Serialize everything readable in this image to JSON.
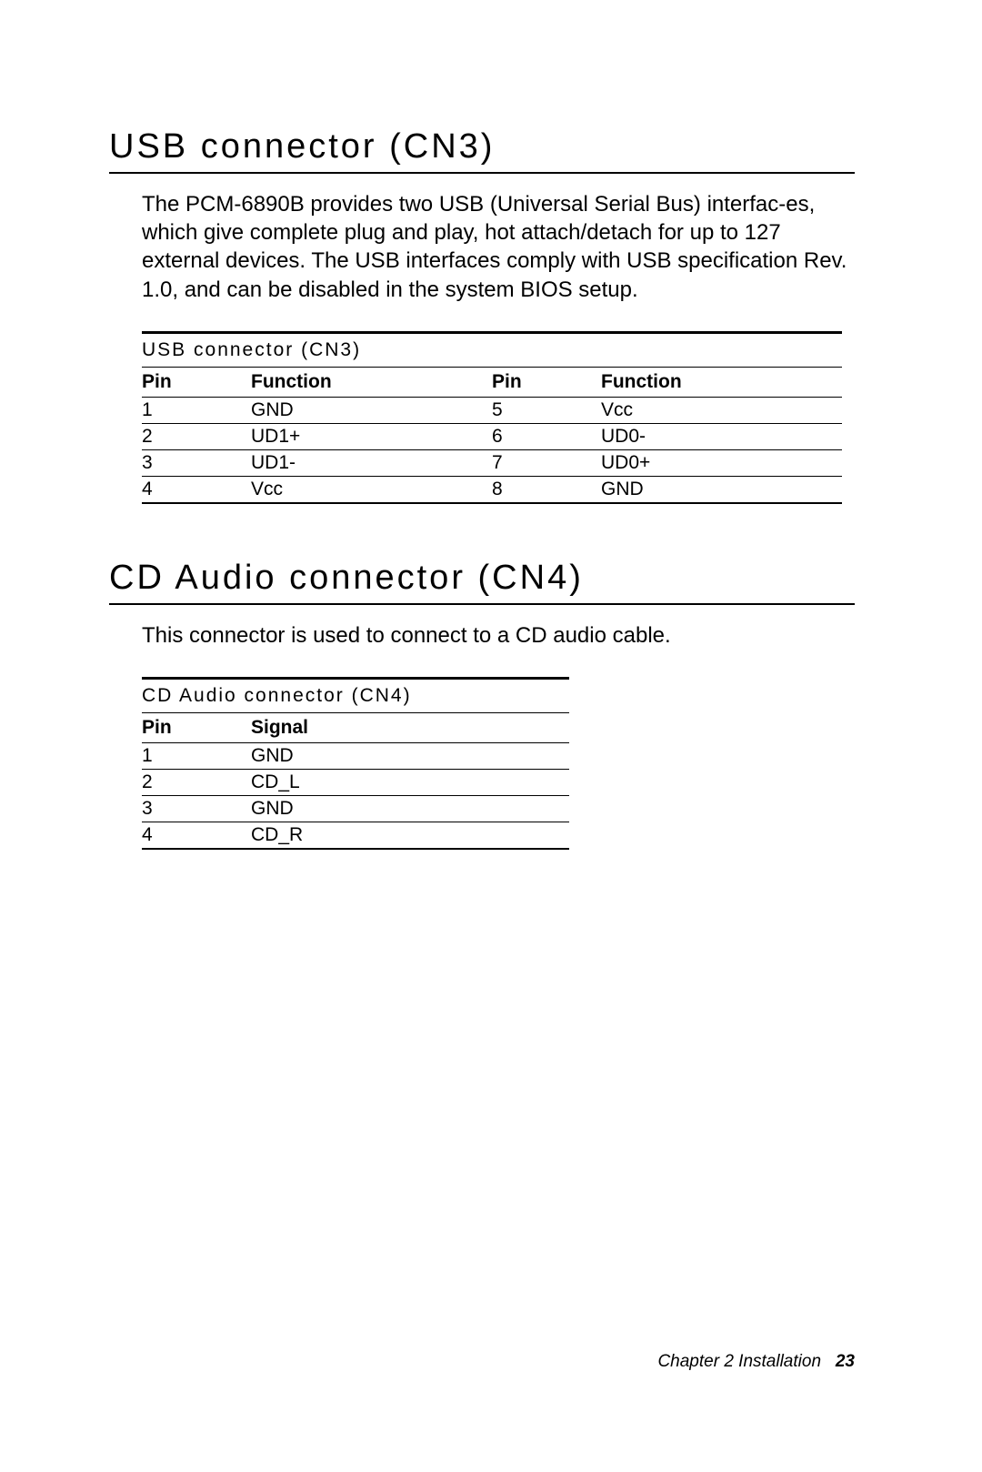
{
  "usb": {
    "heading": "USB connector (CN3)",
    "paragraph": "The PCM-6890B provides two USB (Universal Serial Bus) interfac-es, which give complete plug and play, hot attach/detach for up to 127 external devices.  The USB interfaces comply with USB specification Rev. 1.0, and can be disabled in the system BIOS setup.",
    "table_caption": "USB connector (CN3)",
    "columns": [
      "Pin",
      "Function",
      "Pin",
      "Function"
    ],
    "rows": [
      [
        "1",
        "GND",
        "5",
        "Vcc"
      ],
      [
        "2",
        "UD1+",
        "6",
        "UD0-"
      ],
      [
        "3",
        "UD1-",
        "7",
        "UD0+"
      ],
      [
        "4",
        "Vcc",
        "8",
        "GND"
      ]
    ]
  },
  "cd": {
    "heading": "CD Audio connector (CN4)",
    "paragraph": "This connector is used to connect to a CD audio cable.",
    "table_caption": "CD Audio connector (CN4)",
    "columns": [
      "Pin",
      "Signal"
    ],
    "rows": [
      [
        "1",
        "GND"
      ],
      [
        "2",
        "CD_L"
      ],
      [
        "3",
        "GND"
      ],
      [
        "4",
        "CD_R"
      ]
    ]
  },
  "footer": {
    "chapter": "Chapter 2  Installation",
    "page": "23"
  }
}
